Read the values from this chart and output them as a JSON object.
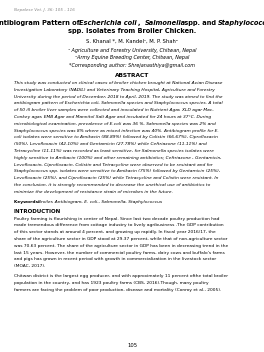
{
  "journal_line": "Nepalese Vet. J. 36: 105 - 116",
  "title_bold1": "Antibiogram Pattern of ",
  "title_italic1": "Escherichia coli",
  "title_bold2": ", ",
  "title_italic2": "Salmonella",
  "title_bold3": " spp. and ",
  "title_italic3": "Staphylococcus",
  "title_line2": "spp. Isolates from Broiler Chicken.",
  "authors": "S. Khanal *, M. Kandel¹, M. P. Shah²",
  "affil1": "¹ Agriculture and Forestry University, Chitwan, Nepal",
  "affil2": "²Army Equine Breeding Center, Chitwan, Nepal",
  "corresponding": "*Corresponding author: Shrejanasthiya@gmail.com",
  "abstract_header": "ABSTRACT",
  "abstract_lines": [
    "This study was conducted on clinical cases of broiler chicken brought at National Avian Disease",
    "Investigation Laboratory (NADIL) and Veterinary Teaching Hospital, Agriculture and Forestry",
    "University during the period of December, 2018 to April, 2019. The study was aimed to find the",
    "antibiogram pattern of Escherichia coli, Salmonella species and Staphylococcus species. A total",
    "of 50 ill broiler liver samples were collected and inoculated in Nutrient Agar, XLD agar Mac-",
    "Conkey agar, EMB Agar and Mannitol Salt Agar and incubated for 24 hours at 37°C. During",
    "microbiological examination, prevalence of E.coli was 36 %, Salmonella species was 2% and",
    "Staphylococcus species was 8% where as mixed infection was 40%. Antibiogram profile for E.",
    "coli isolates were sensitive to Amikacin (88.89%) followed by Colistin (66.67%), Ciprofloxacin",
    "(50%), Levofloxacin (42.10%) and Gentamicin (27.78%) while Ceftriaxone (11.11%) and",
    "Tetracycline (11.11%) was recorded as least sensitive, for Salmonella species isolates were",
    "highly sensitive to Amikacin (100%) and other remaining antibiotics; Ceftriaxone , Gentamicin,",
    "Levofloxacin, Ciprofloxacin, Colistin and Tetracycline were observed to be resistant and for",
    "Staphylococcus spp. isolates were sensitive to Amikacin (75%) followed by Gentamicin (25%),",
    "Levofloxacin (25%), and Ciprofloxacin (25%) while Tetracycline and Colistin were resistant. In",
    "the conclusion, it is strongly recommended to decrease the unethical use of antibiotics to",
    "minimize the development of resistance strain of microbes in the future."
  ],
  "keywords_label": "Keywords: ",
  "keywords_text": "Broiler, Antibiogram, E. coli., Salmonella, Staphylococcus",
  "intro_header": "INTRODUCTION",
  "intro_lines": [
    "Poultry farming is flourishing in center of Nepal. Since last two decade poultry production had",
    "made tremendous difference from cottage industry to lively agribusiness .The GDP contribution",
    "of this sector stands at around 4 percent, and growing up rapidly. In fiscal year 2016/17, the",
    "share of the agriculture sector in GDP stood at 29.37 percent, while that of non-agriculture sector",
    "was 70.63 percent. The share of the agriculture sector in GDP has been in decreasing trend in the",
    "last 15 years. However, the number of commercial poultry farms, dairy cows and buffalo's farms",
    "and pigs has grown in recent period with growth in commercialization in the livestock sector",
    "(MOAC, 2017)."
  ],
  "intro_lines2": [
    "Chitwan district is the largest egg producer, and with approximately 11 percent ofthe total broiler",
    "population in the country, and has 1923 poultry farms (CBS, 2016).Though, many poultry",
    "farmers are facing the problem of poor production, disease and mortality (Conroy et al., 2005)."
  ],
  "page_number": "105",
  "bg_color": "#ffffff",
  "text_color": "#000000",
  "gray_color": "#888888"
}
